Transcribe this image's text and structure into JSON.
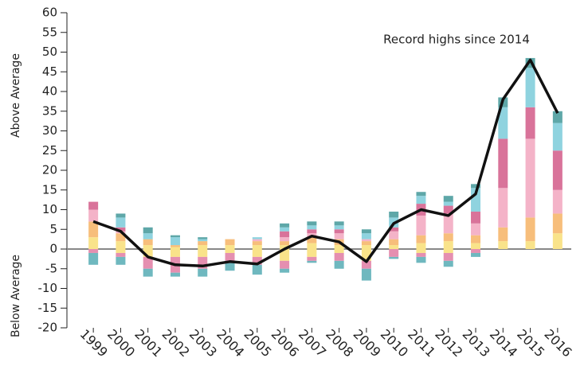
{
  "chart_data": {
    "type": "bar",
    "annotation": "Record highs since 2014",
    "y_label_above": "Above Average",
    "y_label_below": "Below Average",
    "categories": [
      "1999",
      "2000",
      "2001",
      "2002",
      "2003",
      "2004",
      "2005",
      "2006",
      "2007",
      "2008",
      "2009",
      "2010",
      "2011",
      "2012",
      "2013",
      "2014",
      "2015",
      "2016"
    ],
    "series": [
      {
        "color": "#f9e38a",
        "values": [
          3,
          2,
          1,
          0.5,
          1,
          1,
          1,
          1,
          1.5,
          1,
          1,
          1,
          1.5,
          2,
          1.5,
          2,
          2,
          4
        ]
      },
      {
        "color": "#f7be7b",
        "values": [
          4,
          2,
          1.5,
          0.5,
          1,
          1.5,
          1,
          1,
          1.5,
          1.5,
          1,
          1.5,
          2,
          2,
          2,
          3.5,
          6,
          5
        ]
      },
      {
        "color": "#f4b3c8",
        "values": [
          3,
          0.5,
          0,
          0,
          0,
          0,
          0.5,
          1,
          1,
          1.5,
          0.5,
          2,
          5,
          5,
          3,
          10,
          20,
          6
        ]
      },
      {
        "color": "#d9739a",
        "values": [
          2,
          1,
          0,
          0,
          0,
          0,
          0,
          1.5,
          1,
          1,
          0,
          1,
          3,
          2,
          3,
          12.5,
          8,
          10
        ]
      },
      {
        "color": "#8fd3df",
        "values": [
          0,
          2.5,
          1.5,
          2,
          0.5,
          0,
          0.5,
          1,
          1,
          1,
          1.5,
          2.5,
          2,
          1,
          6,
          8,
          10,
          7
        ]
      },
      {
        "color": "#5ea7a8",
        "values": [
          0,
          1,
          1.5,
          0.5,
          0.5,
          0,
          0,
          1,
          1,
          1,
          1,
          1.5,
          1,
          1.5,
          1,
          2.5,
          2.5,
          3
        ]
      },
      {
        "color": "#f9e38a",
        "values": [
          0,
          -1,
          -2,
          -2,
          -2,
          -1,
          -2,
          -3,
          -2,
          -1,
          -3,
          0,
          -1,
          -1,
          0,
          0,
          0,
          0
        ]
      },
      {
        "color": "#e58fb0",
        "values": [
          -1,
          -1,
          -3,
          -4,
          -3,
          -2,
          -2,
          -2,
          -1,
          -2,
          -2,
          -2,
          -1,
          -2,
          -1,
          0,
          0,
          0
        ]
      },
      {
        "color": "#6fb8bf",
        "values": [
          -3,
          -2,
          -2,
          -1,
          -2,
          -2.5,
          -2.5,
          -1,
          -0.5,
          -2,
          -3,
          -0.5,
          -1.5,
          -1.5,
          -1,
          0,
          0,
          0
        ]
      }
    ],
    "line": {
      "color": "#111111",
      "values": [
        7,
        4.5,
        -2,
        -4,
        -4.3,
        -3.2,
        -3.8,
        0,
        3.3,
        1.8,
        -3.2,
        6.5,
        10,
        8.5,
        14,
        38,
        48,
        34.5
      ]
    },
    "ylim": [
      -20,
      60
    ],
    "yticks": [
      -20,
      -15,
      -10,
      -5,
      0,
      5,
      10,
      15,
      20,
      25,
      30,
      35,
      40,
      45,
      50,
      55,
      60
    ]
  }
}
